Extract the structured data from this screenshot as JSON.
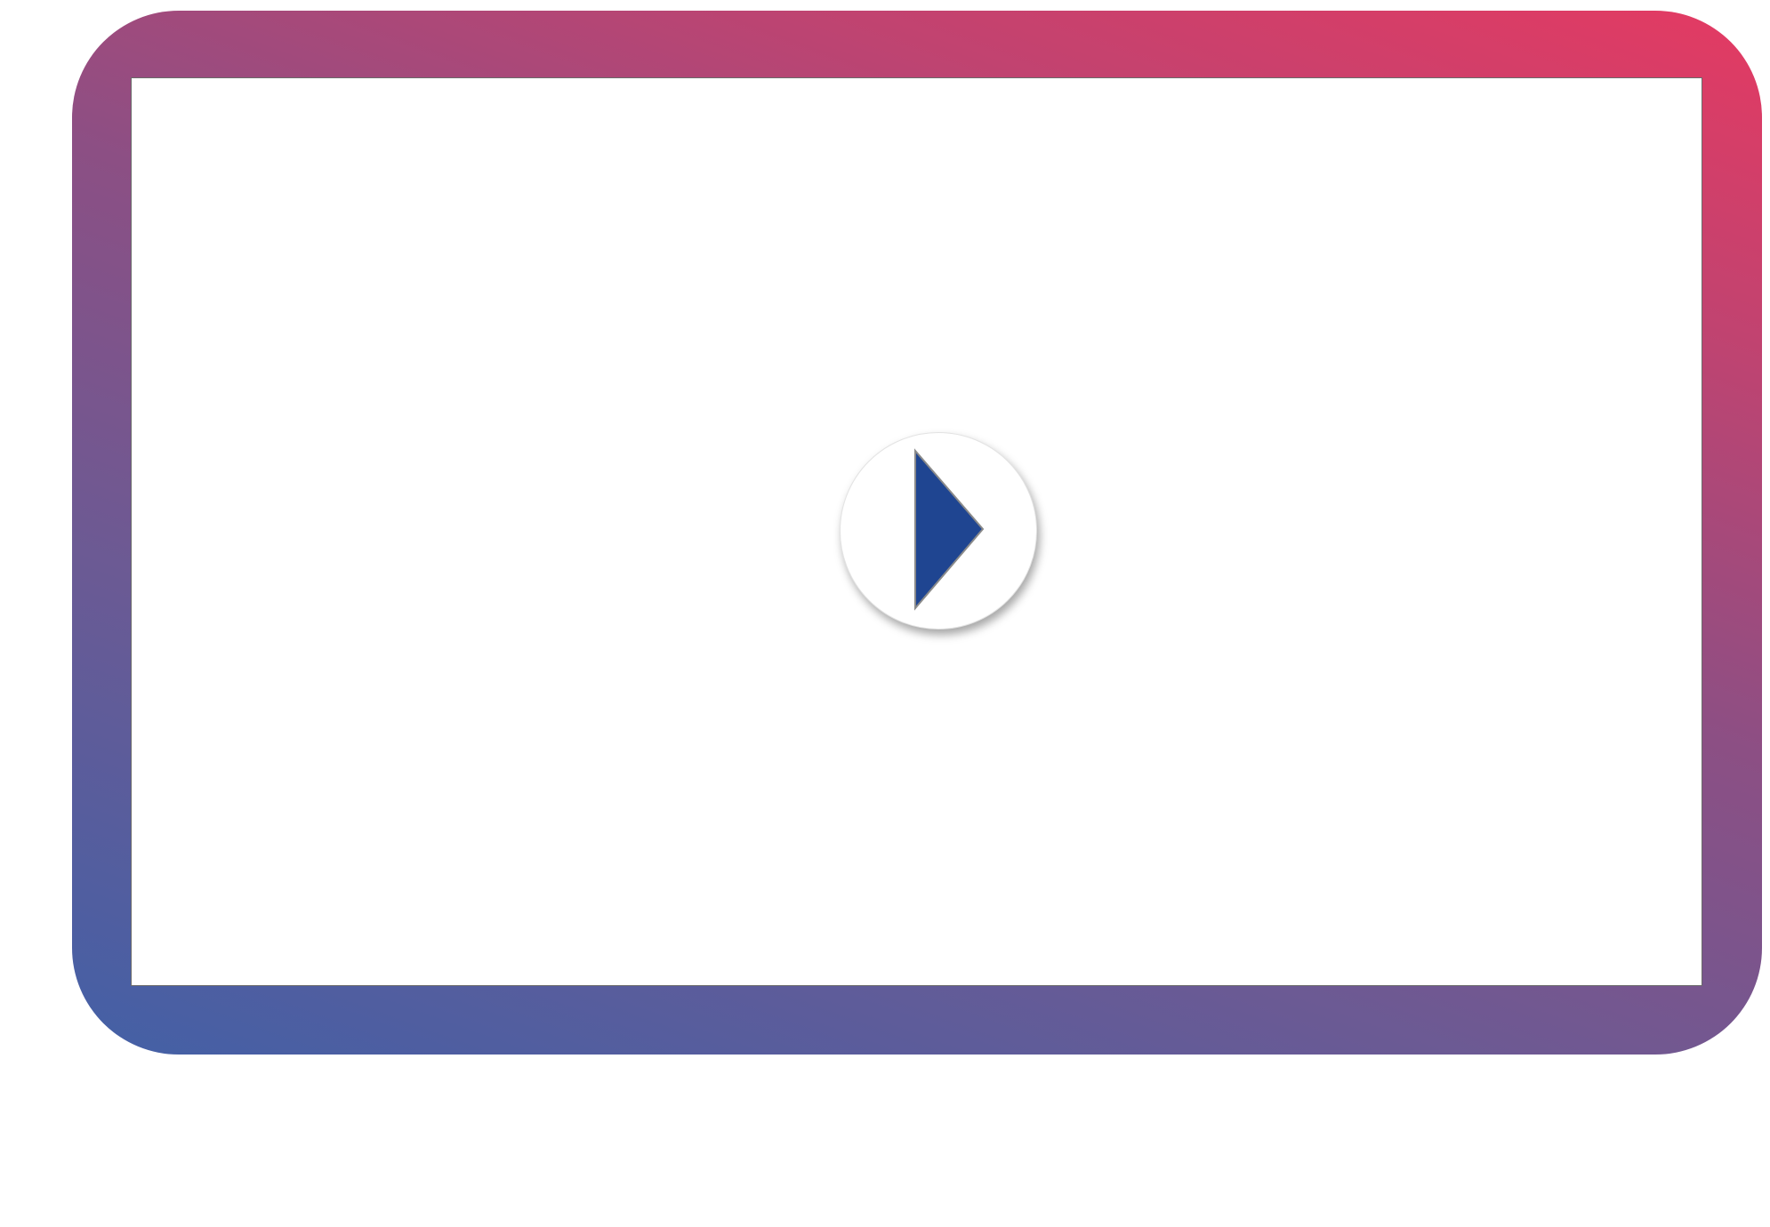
{
  "player": {
    "frame_gradient_colors": [
      "#4360a6",
      "#e43a62"
    ],
    "play_button": {
      "icon": "play-icon",
      "icon_color": "#1f4591",
      "background_color": "#ffffff"
    }
  }
}
